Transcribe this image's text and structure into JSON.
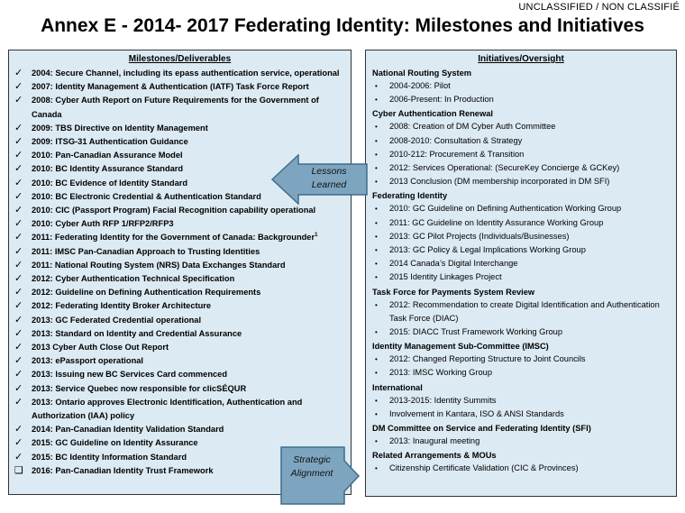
{
  "classification": "UNCLASSIFIED / NON CLASSIFIÉ",
  "title": "Annex E - 2014- 2017 Federating Identity: Milestones and Initiatives",
  "milestones": {
    "heading": "Milestones/Deliverables",
    "check_mark": "✓",
    "pending_mark": "❑",
    "items": [
      {
        "text": "2004: Secure Channel, including its epass authentication service, operational",
        "status": "done"
      },
      {
        "text": "2007: Identity Management & Authentication (IATF) Task Force Report",
        "status": "done"
      },
      {
        "text": "2008: Cyber Auth Report on Future Requirements for the Government of Canada",
        "status": "done"
      },
      {
        "text": "2009: TBS Directive on Identity Management",
        "status": "done"
      },
      {
        "text": "2009: ITSG-31 Authentication Guidance",
        "status": "done"
      },
      {
        "text": "2010: Pan-Canadian Assurance Model",
        "status": "done"
      },
      {
        "text": "2010: BC Identity Assurance Standard",
        "status": "done"
      },
      {
        "text": "2010: BC Evidence of Identity Standard",
        "status": "done"
      },
      {
        "text": "2010: BC Electronic Credential & Authentication Standard",
        "status": "done"
      },
      {
        "text": "2010: CIC (Passport Program) Facial Recognition capability  operational",
        "status": "done"
      },
      {
        "text": "2010: Cyber Auth RFP 1/RFP2/RFP3",
        "status": "done"
      },
      {
        "text": "2011: Federating Identity for the Government of Canada: Backgrounder",
        "sup": "1",
        "status": "done"
      },
      {
        "text": "2011: IMSC Pan-Canadian Approach to Trusting Identities",
        "status": "done"
      },
      {
        "text": "2011: National Routing System (NRS) Data Exchanges Standard",
        "status": "done"
      },
      {
        "text": "2012: Cyber Authentication Technical Specification",
        "status": "done"
      },
      {
        "text": "2012: Guideline on Defining Authentication Requirements",
        "status": "done"
      },
      {
        "text": "2012: Federating Identity Broker Architecture",
        "status": "done"
      },
      {
        "text": "2013: GC Federated Credential operational",
        "status": "done"
      },
      {
        "text": "2013: Standard on Identity and Credential Assurance",
        "status": "done"
      },
      {
        "text": "2013 Cyber Auth Close Out Report",
        "status": "done"
      },
      {
        "text": "2013: ePassport operational",
        "status": "done"
      },
      {
        "text": "2013: Issuing new BC Services Card commenced",
        "status": "done"
      },
      {
        "text": "2013: Service Quebec now responsible for clicSÉQUR",
        "status": "done"
      },
      {
        "text": "2013: Ontario approves Electronic Identification, Authentication  and Authorization (IAA) policy",
        "status": "done"
      },
      {
        "text": "2014: Pan-Canadian Identity Validation Standard",
        "status": "done"
      },
      {
        "text": "2015: GC Guideline on Identity Assurance",
        "status": "done"
      },
      {
        "text": "2015: BC Identity Information Standard",
        "status": "done"
      },
      {
        "text": "2016: Pan-Canadian Identity Trust Framework",
        "status": "pending"
      }
    ]
  },
  "oversight": {
    "heading": "Initiatives/Oversight",
    "bullet": "•",
    "groups": [
      {
        "title": "National Routing System",
        "items": [
          "2004-2006: Pilot",
          "2006-Present: In Production"
        ]
      },
      {
        "title": "Cyber Authentication Renewal",
        "items": [
          "2008: Creation of DM Cyber Auth Committee",
          "2008-2010: Consultation & Strategy",
          "2010-212: Procurement & Transition",
          "2012: Services Operational: (SecureKey Concierge & GCKey)",
          "2013 Conclusion (DM membership incorporated in DM SFI)"
        ]
      },
      {
        "title": "Federating Identity",
        "items": [
          "2010: GC Guideline on Defining Authentication Working Group",
          "2011: GC Guideline on Identity Assurance Working Group",
          "2013: GC Pilot Projects (Individuals/Businesses)",
          "2013: GC Policy & Legal Implications Working Group",
          "2014 Canada’s Digital Interchange",
          "2015 Identity Linkages Project"
        ]
      },
      {
        "title": "Task Force for Payments System Review",
        "items": [
          "2012: Recommendation to create Digital Identification and Authentication Task Force (DIAC)",
          "2015: DIACC Trust Framework Working Group"
        ]
      },
      {
        "title": "Identity Management Sub-Committee (IMSC)",
        "items": [
          "2012: Changed Reporting Structure to Joint Councils",
          "2013: IMSC Working Group"
        ]
      },
      {
        "title": "International",
        "items": [
          "2013-2015: Identity Summits",
          "Involvement in Kantara, ISO & ANSI Standards"
        ]
      },
      {
        "title": "DM Committee on Service and Federating Identity (SFI)",
        "items": [
          "2013: Inaugural meeting"
        ]
      },
      {
        "title": "Related Arrangements & MOUs",
        "items": [
          "Citizenship Certificate Validation (CIC & Provinces)"
        ]
      }
    ]
  },
  "arrows": {
    "lessons_line1": "Lessons",
    "lessons_line2": "Learned",
    "strategic_line1": "Strategic",
    "strategic_line2": "Alignment",
    "fill": "#7ea5bf",
    "stroke": "#3f6d8c"
  }
}
